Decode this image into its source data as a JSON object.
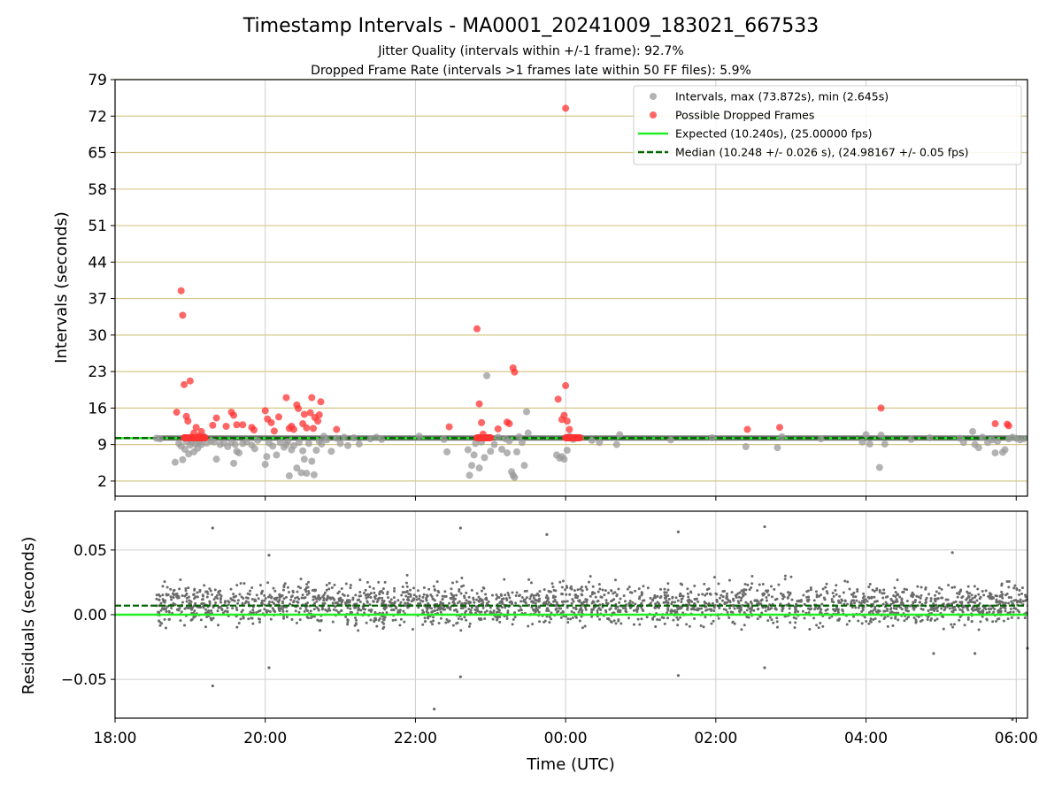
{
  "figure": {
    "title": "Timestamp Intervals - MA0001_20241009_183021_667533",
    "subtitle_1": "Jitter Quality (intervals within +/-1 frame): 92.7%",
    "subtitle_2": "Dropped Frame Rate (intervals >1 frames late within 50 FF files): 5.9%"
  },
  "colors": {
    "intervals": "#999999",
    "dropped": "#ff3333",
    "expected": "#22ee22",
    "median": "#006400",
    "hgrid_top": "#d6c88a",
    "grid": "#cfcfcf",
    "residuals": "#6b6b6b"
  },
  "chart_data": [
    {
      "type": "scatter",
      "title": "",
      "xlabel": "",
      "ylabel": "Intervals (seconds)",
      "x_ticks": [
        "18:00",
        "20:00",
        "22:00",
        "00:00",
        "02:00",
        "04:00",
        "06:00"
      ],
      "y_ticks": [
        "2",
        "9",
        "16",
        "23",
        "30",
        "37",
        "44",
        "51",
        "58",
        "65",
        "72",
        "79"
      ],
      "xlim_hours": [
        18.0,
        30.15
      ],
      "ylim": [
        -0.9,
        79
      ],
      "grid": "on",
      "legend_position": "top-right",
      "legend": [
        "Intervals, max (73.872s), min (2.645s)",
        "Possible Dropped Frames",
        "Expected (10.240s), (25.00000 fps)",
        "Median (10.248 +/- 0.026 s), (24.98167 +/- 0.05 fps)"
      ],
      "expected_value": 10.24,
      "median_value": 10.248,
      "series": [
        {
          "name": "Intervals, max (73.872s), min (2.645s)",
          "points": [
            [
              18.55,
              10.2
            ],
            [
              18.6,
              10.1
            ],
            [
              18.8,
              5.6
            ],
            [
              18.85,
              9.2
            ],
            [
              18.88,
              8.7
            ],
            [
              18.9,
              6.1
            ],
            [
              18.93,
              8.1
            ],
            [
              18.95,
              9.6
            ],
            [
              18.98,
              7.2
            ],
            [
              19.0,
              8.9
            ],
            [
              19.02,
              9.5
            ],
            [
              19.05,
              7.6
            ],
            [
              19.07,
              9.1
            ],
            [
              19.1,
              8.3
            ],
            [
              19.12,
              9.4
            ],
            [
              19.15,
              9.0
            ],
            [
              19.18,
              10.6
            ],
            [
              19.22,
              9.3
            ],
            [
              19.28,
              9.7
            ],
            [
              19.32,
              9.5
            ],
            [
              19.35,
              6.2
            ],
            [
              19.4,
              9.0
            ],
            [
              19.45,
              9.3
            ],
            [
              19.5,
              8.6
            ],
            [
              19.55,
              9.4
            ],
            [
              19.58,
              5.4
            ],
            [
              19.6,
              9.0
            ],
            [
              19.62,
              7.7
            ],
            [
              19.65,
              7.4
            ],
            [
              19.7,
              9.2
            ],
            [
              19.75,
              9.5
            ],
            [
              19.82,
              8.9
            ],
            [
              19.86,
              8.2
            ],
            [
              19.9,
              9.8
            ],
            [
              20.0,
              5.2
            ],
            [
              20.02,
              6.7
            ],
            [
              20.05,
              9.3
            ],
            [
              20.1,
              8.7
            ],
            [
              20.15,
              7.0
            ],
            [
              20.2,
              9.4
            ],
            [
              20.25,
              8.5
            ],
            [
              20.28,
              9.0
            ],
            [
              20.3,
              9.6
            ],
            [
              20.32,
              3.0
            ],
            [
              20.35,
              8.0
            ],
            [
              20.38,
              8.8
            ],
            [
              20.42,
              4.5
            ],
            [
              20.45,
              9.4
            ],
            [
              20.48,
              3.6
            ],
            [
              20.5,
              7.8
            ],
            [
              20.52,
              6.2
            ],
            [
              20.55,
              3.5
            ],
            [
              20.58,
              9.2
            ],
            [
              20.62,
              5.8
            ],
            [
              20.65,
              3.2
            ],
            [
              20.68,
              7.9
            ],
            [
              20.72,
              9.6
            ],
            [
              20.75,
              9.1
            ],
            [
              20.78,
              10.6
            ],
            [
              20.82,
              9.9
            ],
            [
              20.88,
              7.7
            ],
            [
              20.95,
              10.2
            ],
            [
              21.0,
              9.2
            ],
            [
              21.05,
              10.4
            ],
            [
              21.1,
              8.8
            ],
            [
              21.18,
              10.3
            ],
            [
              21.25,
              9.1
            ],
            [
              21.4,
              10.1
            ],
            [
              21.48,
              10.4
            ],
            [
              21.55,
              10.0
            ],
            [
              22.05,
              10.6
            ],
            [
              22.38,
              10.0
            ],
            [
              22.42,
              7.6
            ],
            [
              22.7,
              8.0
            ],
            [
              22.72,
              3.1
            ],
            [
              22.75,
              5.0
            ],
            [
              22.78,
              7.0
            ],
            [
              22.8,
              9.2
            ],
            [
              22.85,
              4.5
            ],
            [
              22.88,
              9.5
            ],
            [
              22.92,
              6.5
            ],
            [
              22.95,
              22.2
            ],
            [
              23.0,
              7.7
            ],
            [
              23.05,
              9.0
            ],
            [
              23.1,
              10.4
            ],
            [
              23.15,
              8.1
            ],
            [
              23.2,
              10.1
            ],
            [
              23.22,
              7.4
            ],
            [
              23.25,
              9.7
            ],
            [
              23.28,
              3.8
            ],
            [
              23.3,
              3.1
            ],
            [
              23.32,
              2.7
            ],
            [
              23.35,
              7.6
            ],
            [
              23.38,
              10.5
            ],
            [
              23.42,
              9.4
            ],
            [
              23.45,
              5.0
            ],
            [
              23.48,
              15.3
            ],
            [
              23.5,
              11.2
            ],
            [
              23.88,
              7.0
            ],
            [
              23.92,
              6.4
            ],
            [
              23.95,
              6.7
            ],
            [
              23.98,
              6.2
            ],
            [
              24.02,
              7.9
            ],
            [
              24.05,
              10.6
            ],
            [
              24.1,
              10.0
            ],
            [
              24.35,
              9.8
            ],
            [
              24.45,
              9.4
            ],
            [
              24.68,
              9.0
            ],
            [
              24.72,
              10.9
            ],
            [
              25.4,
              9.9
            ],
            [
              25.95,
              10.3
            ],
            [
              26.4,
              8.6
            ],
            [
              26.82,
              8.4
            ],
            [
              26.88,
              10.5
            ],
            [
              27.4,
              10.1
            ],
            [
              27.95,
              9.5
            ],
            [
              28.0,
              10.9
            ],
            [
              28.05,
              9.1
            ],
            [
              28.18,
              4.6
            ],
            [
              28.2,
              10.8
            ],
            [
              28.25,
              9.1
            ],
            [
              28.6,
              10.0
            ],
            [
              28.85,
              10.3
            ],
            [
              29.25,
              10.2
            ],
            [
              29.3,
              9.4
            ],
            [
              29.42,
              11.5
            ],
            [
              29.45,
              9.0
            ],
            [
              29.5,
              8.4
            ],
            [
              29.55,
              10.4
            ],
            [
              29.62,
              9.4
            ],
            [
              29.68,
              9.9
            ],
            [
              29.72,
              7.4
            ],
            [
              29.75,
              9.6
            ],
            [
              29.82,
              7.5
            ],
            [
              29.85,
              8.0
            ],
            [
              29.9,
              10.1
            ],
            [
              29.95,
              10.4
            ],
            [
              30.0,
              10.2
            ],
            [
              30.05,
              9.9
            ],
            [
              30.1,
              10.1
            ]
          ]
        },
        {
          "name": "Possible Dropped Frames",
          "points": [
            [
              18.82,
              15.2
            ],
            [
              18.88,
              38.5
            ],
            [
              18.9,
              33.8
            ],
            [
              18.92,
              20.5
            ],
            [
              18.95,
              14.4
            ],
            [
              18.97,
              13.5
            ],
            [
              19.0,
              21.2
            ],
            [
              19.02,
              10.4
            ],
            [
              19.05,
              11.2
            ],
            [
              19.08,
              12.3
            ],
            [
              19.12,
              10.6
            ],
            [
              19.15,
              11.5
            ],
            [
              19.2,
              10.3
            ],
            [
              19.3,
              12.7
            ],
            [
              19.35,
              14.1
            ],
            [
              19.48,
              12.5
            ],
            [
              19.55,
              15.2
            ],
            [
              19.58,
              14.6
            ],
            [
              19.62,
              12.8
            ],
            [
              19.7,
              12.8
            ],
            [
              19.82,
              12.3
            ],
            [
              19.85,
              11.8
            ],
            [
              20.0,
              15.5
            ],
            [
              20.03,
              13.9
            ],
            [
              20.08,
              13.2
            ],
            [
              20.12,
              11.6
            ],
            [
              20.18,
              14.3
            ],
            [
              20.28,
              18.0
            ],
            [
              20.32,
              12.1
            ],
            [
              20.35,
              12.5
            ],
            [
              20.38,
              11.9
            ],
            [
              20.42,
              16.6
            ],
            [
              20.44,
              15.9
            ],
            [
              20.5,
              13.0
            ],
            [
              20.52,
              14.8
            ],
            [
              20.55,
              12.2
            ],
            [
              20.6,
              15.1
            ],
            [
              20.62,
              18.0
            ],
            [
              20.64,
              12.1
            ],
            [
              20.66,
              14.2
            ],
            [
              20.7,
              13.5
            ],
            [
              20.72,
              14.7
            ],
            [
              20.74,
              17.2
            ],
            [
              20.95,
              11.9
            ],
            [
              22.45,
              12.4
            ],
            [
              22.82,
              31.2
            ],
            [
              22.85,
              16.8
            ],
            [
              22.88,
              13.2
            ],
            [
              22.9,
              11.0
            ],
            [
              23.1,
              12.0
            ],
            [
              23.22,
              13.3
            ],
            [
              23.25,
              13.0
            ],
            [
              23.3,
              23.7
            ],
            [
              23.32,
              22.9
            ],
            [
              23.9,
              17.7
            ],
            [
              23.95,
              13.8
            ],
            [
              23.98,
              14.6
            ],
            [
              24.0,
              20.3
            ],
            [
              24.02,
              13.5
            ],
            [
              24.05,
              11.9
            ],
            [
              24.0,
              73.5
            ],
            [
              26.42,
              11.9
            ],
            [
              26.85,
              12.3
            ],
            [
              28.2,
              16.0
            ],
            [
              29.72,
              13.0
            ],
            [
              29.88,
              12.9
            ],
            [
              29.9,
              12.6
            ]
          ],
          "clusters": [
            {
              "from": 18.92,
              "to": 19.2,
              "value": 10.3
            },
            {
              "from": 22.82,
              "to": 23.0,
              "value": 10.3
            },
            {
              "from": 24.0,
              "to": 24.2,
              "value": 10.3
            }
          ]
        }
      ]
    },
    {
      "type": "scatter",
      "title": "",
      "xlabel": "Time (UTC)",
      "ylabel": "Residuals (seconds)",
      "x_ticks": [
        "18:00",
        "20:00",
        "22:00",
        "00:00",
        "02:00",
        "04:00",
        "06:00"
      ],
      "y_ticks": [
        "0.05",
        "0.00",
        "−0.05"
      ],
      "xlim_hours": [
        18.0,
        30.15
      ],
      "ylim": [
        -0.08,
        0.08
      ],
      "grid": "on",
      "expected_value": 0.0,
      "median_value": 0.007,
      "band": {
        "x_from": 18.55,
        "x_to": 30.15,
        "center": 0.008,
        "spread": 0.013,
        "points_count": 2400
      },
      "outliers": [
        [
          19.3,
          0.067
        ],
        [
          19.3,
          -0.055
        ],
        [
          20.05,
          0.046
        ],
        [
          20.05,
          -0.041
        ],
        [
          22.25,
          -0.073
        ],
        [
          22.6,
          0.067
        ],
        [
          22.6,
          -0.048
        ],
        [
          23.75,
          0.062
        ],
        [
          25.5,
          0.064
        ],
        [
          25.5,
          -0.047
        ],
        [
          26.65,
          0.068
        ],
        [
          26.65,
          -0.041
        ],
        [
          28.9,
          -0.03
        ],
        [
          29.15,
          0.048
        ],
        [
          29.45,
          -0.03
        ],
        [
          29.95,
          -0.081
        ],
        [
          30.15,
          -0.026
        ]
      ]
    }
  ]
}
